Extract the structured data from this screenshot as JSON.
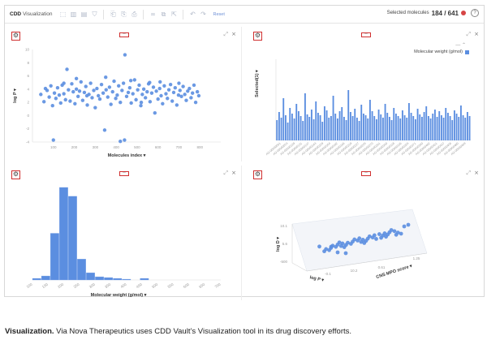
{
  "app": {
    "brand": "CDD",
    "module": "Visualization",
    "reset_label": "Reset",
    "selected_label": "Selected molecules",
    "selected_count": "184 / 641",
    "help_label": "?",
    "toolbar_icons": [
      "lasso-icon",
      "bar-chart-icon",
      "histogram-icon",
      "filter-icon",
      "bookmark-icon",
      "bookmark-add-icon",
      "bookmark-remove-icon",
      "link-icon",
      "copy-icon",
      "export-icon",
      "undo-icon",
      "redo-icon"
    ]
  },
  "panel_controls": {
    "expand": "⤢",
    "close": "×",
    "drag": "═"
  },
  "caption": {
    "title": "Visualization.",
    "text": " Via Nova Therapeutics uses CDD Vault’s Visualization tool in its drug discovery efforts."
  },
  "chart_data": [
    {
      "type": "scatter",
      "xlabel": "Molecules index",
      "ylabel": "log P",
      "xticks": [
        "100",
        "200",
        "300",
        "400",
        "500",
        "600",
        "700",
        "800"
      ],
      "yticks": [
        "10",
        "8",
        "6",
        "4",
        "2",
        "0",
        "-2",
        "-4"
      ],
      "ylim": [
        -4,
        10
      ],
      "xlim": [
        0,
        900
      ],
      "color": "#5b8ee0",
      "points": [
        [
          40,
          3.2
        ],
        [
          55,
          2.1
        ],
        [
          62,
          4.1
        ],
        [
          70,
          3.8
        ],
        [
          80,
          2.8
        ],
        [
          88,
          4.5
        ],
        [
          96,
          1.5
        ],
        [
          105,
          3.4
        ],
        [
          112,
          2.6
        ],
        [
          120,
          4.2
        ],
        [
          128,
          3.1
        ],
        [
          135,
          1.9
        ],
        [
          142,
          4.6
        ],
        [
          150,
          3.3
        ],
        [
          158,
          2.4
        ],
        [
          165,
          7.0
        ],
        [
          172,
          3.9
        ],
        [
          180,
          2.2
        ],
        [
          188,
          4.8
        ],
        [
          195,
          3.6
        ],
        [
          203,
          1.8
        ],
        [
          210,
          4.0
        ],
        [
          218,
          2.9
        ],
        [
          225,
          3.7
        ],
        [
          232,
          5.1
        ],
        [
          240,
          2.3
        ],
        [
          248,
          3.5
        ],
        [
          255,
          4.4
        ],
        [
          262,
          1.6
        ],
        [
          270,
          3.2
        ],
        [
          278,
          4.9
        ],
        [
          285,
          2.7
        ],
        [
          293,
          3.8
        ],
        [
          300,
          1.2
        ],
        [
          308,
          4.1
        ],
        [
          315,
          3.0
        ],
        [
          322,
          2.5
        ],
        [
          330,
          4.7
        ],
        [
          338,
          3.4
        ],
        [
          345,
          -2.2
        ],
        [
          352,
          3.9
        ],
        [
          360,
          2.8
        ],
        [
          368,
          4.3
        ],
        [
          375,
          1.7
        ],
        [
          383,
          3.6
        ],
        [
          390,
          5.2
        ],
        [
          398,
          2.6
        ],
        [
          405,
          3.1
        ],
        [
          412,
          4.5
        ],
        [
          420,
          2.0
        ],
        [
          428,
          3.8
        ],
        [
          435,
          4.9
        ],
        [
          442,
          9.2
        ],
        [
          450,
          2.9
        ],
        [
          458,
          3.5
        ],
        [
          465,
          4.2
        ],
        [
          472,
          1.9
        ],
        [
          480,
          3.3
        ],
        [
          488,
          5.4
        ],
        [
          495,
          2.4
        ],
        [
          503,
          3.9
        ],
        [
          510,
          4.6
        ],
        [
          518,
          1.5
        ],
        [
          525,
          3.2
        ],
        [
          532,
          4.0
        ],
        [
          540,
          2.7
        ],
        [
          548,
          3.6
        ],
        [
          555,
          4.8
        ],
        [
          562,
          2.1
        ],
        [
          570,
          3.4
        ],
        [
          578,
          4.3
        ],
        [
          585,
          0.4
        ],
        [
          592,
          3.7
        ],
        [
          600,
          2.5
        ],
        [
          608,
          4.1
        ],
        [
          615,
          3.0
        ],
        [
          622,
          1.8
        ],
        [
          630,
          4.5
        ],
        [
          638,
          3.3
        ],
        [
          645,
          2.6
        ],
        [
          652,
          3.9
        ],
        [
          660,
          4.7
        ],
        [
          668,
          2.2
        ],
        [
          675,
          3.5
        ],
        [
          682,
          4.2
        ],
        [
          690,
          1.6
        ],
        [
          698,
          3.1
        ],
        [
          705,
          3.8
        ],
        [
          712,
          2.9
        ],
        [
          720,
          4.4
        ],
        [
          728,
          3.2
        ],
        [
          735,
          2.3
        ],
        [
          742,
          3.7
        ],
        [
          750,
          4.1
        ],
        [
          758,
          2.7
        ],
        [
          765,
          3.4
        ],
        [
          772,
          4.6
        ],
        [
          780,
          2.0
        ],
        [
          788,
          3.6
        ],
        [
          795,
          3.0
        ],
        [
          100,
          -3.7
        ],
        [
          440,
          -3.7
        ],
        [
          420,
          -3.9
        ],
        [
          210,
          5.6
        ],
        [
          260,
          3.0
        ],
        [
          350,
          5.8
        ],
        [
          470,
          5.3
        ],
        [
          560,
          5.0
        ],
        [
          700,
          4.9
        ],
        [
          610,
          5.1
        ],
        [
          150,
          4.9
        ],
        [
          520,
          2.0
        ]
      ]
    },
    {
      "type": "bar",
      "ylabel": "Selected(1)",
      "series": [
        {
          "name": "Molecular weight (g/mol)"
        }
      ],
      "xticks": [
        "AG-00000001",
        "AG-00000053",
        "AG-00000128",
        "AG-00000131",
        "AG-00000137",
        "AG-00000143",
        "AG-00000159",
        "AG-00000164",
        "AG-00000182",
        "AG-00000196",
        "AG-00000218",
        "AG-00000227",
        "AG-00000255",
        "AG-00000270",
        "AG-00000291",
        "AG-00000300",
        "AG-00000318",
        "AG-00000336",
        "AG-00000354",
        "AG-00000371",
        "AG-00000390",
        "AG-00000402",
        "AG-00000421",
        "AG-00000437",
        "AG-00000456",
        "AG-00000480",
        "AG-00000499"
      ],
      "color": "#5b8ee0",
      "values": [
        0.25,
        0.35,
        0.28,
        0.52,
        0.31,
        0.22,
        0.4,
        0.33,
        0.27,
        0.45,
        0.36,
        0.3,
        0.24,
        0.58,
        0.32,
        0.29,
        0.38,
        0.26,
        0.48,
        0.34,
        0.31,
        0.23,
        0.42,
        0.37,
        0.28,
        0.3,
        0.55,
        0.33,
        0.27,
        0.36,
        0.41,
        0.29,
        0.25,
        0.62,
        0.35,
        0.3,
        0.39,
        0.28,
        0.24,
        0.44,
        0.33,
        0.31,
        0.27,
        0.5,
        0.36,
        0.3,
        0.26,
        0.38,
        0.32,
        0.28,
        0.45,
        0.34,
        0.29,
        0.25,
        0.4,
        0.33,
        0.3,
        0.27,
        0.37,
        0.31,
        0.28,
        0.46,
        0.34,
        0.3,
        0.26,
        0.39,
        0.32,
        0.29,
        0.35,
        0.42,
        0.3,
        0.27,
        0.33,
        0.38,
        0.29,
        0.36,
        0.31,
        0.28,
        0.4,
        0.34,
        0.3,
        0.25,
        0.37,
        0.33,
        0.29,
        0.43,
        0.31,
        0.28,
        0.35,
        0.3
      ]
    },
    {
      "type": "bar",
      "xlabel": "Molecular weight (g/mol)",
      "xticks": [
        "100",
        "150",
        "200",
        "250",
        "300",
        "350",
        "400",
        "450",
        "500",
        "550",
        "600",
        "650",
        "700"
      ],
      "color": "#5b8ee0",
      "values": [
        2,
        5,
        58,
        115,
        104,
        26,
        9,
        4,
        3,
        2,
        1,
        0,
        2,
        0,
        0,
        0,
        0,
        0,
        0,
        0,
        0
      ]
    },
    {
      "type": "scatter",
      "ylabel": "log D",
      "xlabel": "log P",
      "zlabel": "CNS MPO score",
      "yticks": [
        "10.1",
        "5.6",
        "-500"
      ],
      "xticks": [
        "-0.1",
        "10.2",
        "0.61",
        "1.25"
      ],
      "color": "#5b8ee0"
    }
  ]
}
